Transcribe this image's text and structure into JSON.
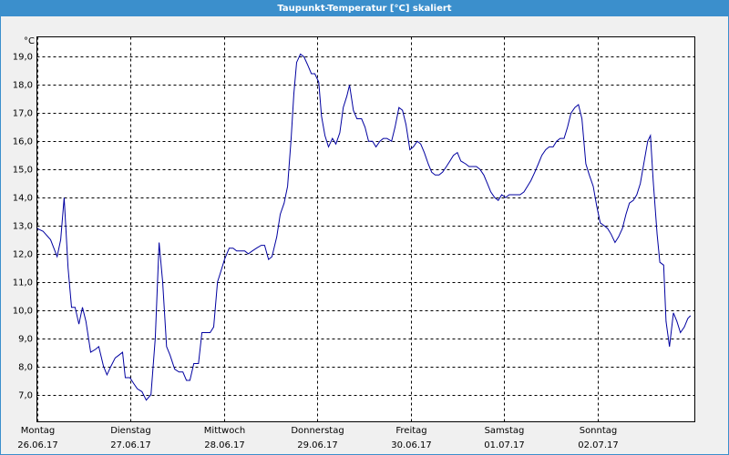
{
  "chart_data": {
    "type": "line",
    "title": "Taupunkt-Temperatur [°C] skaliert",
    "y_unit": "°C",
    "x": [
      0,
      1.6,
      3.5,
      5.2,
      6.1,
      7.0,
      8.0,
      8.9,
      9.8,
      10.8,
      11.7,
      12.6,
      13.8,
      15.0,
      15.9,
      17.1,
      18.0,
      19.0,
      20.1,
      21.1,
      22.0,
      22.7,
      23.9,
      24.8,
      25.8,
      27.0,
      28.1,
      29.3,
      30.4,
      31.4,
      32.3,
      33.3,
      34.2,
      35.4,
      36.5,
      37.5,
      38.4,
      39.3,
      40.3,
      41.5,
      42.4,
      43.3,
      44.5,
      45.4,
      46.4,
      47.3,
      48.2,
      49.4,
      50.4,
      51.3,
      52.5,
      53.4,
      54.3,
      55.3,
      56.4,
      57.6,
      58.5,
      59.5,
      60.4,
      61.6,
      62.5,
      63.5,
      64.4,
      65.3,
      66.0,
      66.7,
      67.7,
      68.6,
      69.6,
      70.5,
      71.4,
      72.4,
      73.1,
      74.0,
      74.9,
      75.9,
      76.8,
      77.8,
      78.7,
      79.6,
      80.3,
      81.3,
      82.2,
      83.4,
      84.3,
      85.2,
      86.2,
      87.1,
      88.1,
      89.0,
      89.9,
      91.1,
      92.0,
      93.0,
      93.9,
      94.8,
      95.8,
      96.7,
      97.7,
      98.6,
      99.5,
      100.5,
      101.4,
      102.3,
      103.3,
      104.2,
      105.2,
      106.1,
      107.0,
      108.0,
      108.9,
      110.1,
      111.0,
      111.9,
      112.9,
      113.8,
      114.8,
      115.7,
      116.6,
      117.6,
      118.5,
      119.4,
      120.4,
      121.3,
      122.2,
      123.2,
      124.1,
      125.1,
      126.0,
      126.9,
      127.9,
      128.8,
      129.7,
      130.7,
      131.6,
      132.6,
      133.5,
      134.4,
      135.4,
      136.3,
      137.2,
      138.2,
      139.1,
      140.0,
      141.0,
      141.9,
      142.9,
      143.8,
      144.7,
      145.7,
      146.6,
      147.5,
      148.5,
      149.4,
      150.4,
      151.3,
      152.2,
      153.2,
      154.1,
      155.0,
      156.0,
      156.9,
      157.6,
      158.3,
      159.3,
      160.0,
      161.0,
      161.6,
      162.5,
      163.5,
      164.4,
      165.3,
      166.3,
      167.2,
      167.9
    ],
    "series": [
      {
        "color": "#0000a0",
        "values": [
          12.9,
          12.8,
          12.5,
          11.9,
          12.5,
          14.0,
          11.5,
          10.1,
          10.1,
          9.5,
          10.1,
          9.6,
          8.5,
          8.6,
          8.7,
          8.0,
          7.7,
          8.0,
          8.3,
          8.4,
          8.5,
          7.6,
          7.6,
          7.4,
          7.2,
          7.1,
          6.8,
          7.0,
          9.0,
          12.4,
          11.0,
          8.7,
          8.4,
          7.9,
          7.8,
          7.8,
          7.5,
          7.5,
          8.1,
          8.1,
          9.2,
          9.2,
          9.2,
          9.4,
          11.0,
          11.4,
          11.8,
          12.2,
          12.2,
          12.1,
          12.1,
          12.1,
          12.0,
          12.1,
          12.2,
          12.3,
          12.3,
          11.8,
          11.9,
          12.6,
          13.4,
          13.8,
          14.4,
          16.1,
          17.7,
          18.8,
          19.1,
          19.0,
          18.7,
          18.4,
          18.4,
          18.1,
          16.9,
          16.2,
          15.8,
          16.1,
          15.9,
          16.3,
          17.2,
          17.6,
          18.0,
          17.1,
          16.8,
          16.8,
          16.5,
          16.0,
          16.0,
          15.8,
          16.0,
          16.1,
          16.1,
          16.0,
          16.5,
          17.2,
          17.1,
          16.6,
          15.7,
          15.8,
          16.0,
          15.9,
          15.6,
          15.2,
          14.9,
          14.8,
          14.8,
          14.9,
          15.1,
          15.3,
          15.5,
          15.6,
          15.3,
          15.2,
          15.1,
          15.1,
          15.1,
          15.0,
          14.8,
          14.5,
          14.2,
          14.0,
          13.9,
          14.1,
          14.0,
          14.1,
          14.1,
          14.1,
          14.1,
          14.2,
          14.4,
          14.6,
          14.9,
          15.2,
          15.5,
          15.7,
          15.8,
          15.8,
          16.0,
          16.1,
          16.1,
          16.5,
          17.0,
          17.2,
          17.3,
          16.8,
          15.2,
          14.8,
          14.4,
          13.7,
          13.1,
          13.0,
          12.9,
          12.7,
          12.4,
          12.6,
          12.9,
          13.4,
          13.8,
          13.9,
          14.1,
          14.5,
          15.3,
          16.0,
          16.2,
          14.6,
          12.7,
          11.7,
          11.6,
          9.6,
          8.7,
          9.9,
          9.6,
          9.2,
          9.4,
          9.7,
          9.8
        ]
      }
    ],
    "xlim": [
      0,
      169
    ],
    "xticks": [
      {
        "value": 0,
        "label": "Montag",
        "date": "26.06.17"
      },
      {
        "value": 24,
        "label": "Dienstag",
        "date": "27.06.17"
      },
      {
        "value": 48,
        "label": "Mittwoch",
        "date": "28.06.17"
      },
      {
        "value": 72,
        "label": "Donnerstag",
        "date": "29.06.17"
      },
      {
        "value": 96,
        "label": "Freitag",
        "date": "30.06.17"
      },
      {
        "value": 120,
        "label": "Samstag",
        "date": "01.07.17"
      },
      {
        "value": 144,
        "label": "Sonntag",
        "date": "02.07.17"
      }
    ],
    "ylim": [
      6.03,
      19.71
    ],
    "yticks": [
      {
        "value": 7,
        "label": "7,0"
      },
      {
        "value": 8,
        "label": "8,0"
      },
      {
        "value": 9,
        "label": "9,0"
      },
      {
        "value": 10,
        "label": "10,0"
      },
      {
        "value": 11,
        "label": "11,0"
      },
      {
        "value": 12,
        "label": "12,0"
      },
      {
        "value": 13,
        "label": "13,0"
      },
      {
        "value": 14,
        "label": "14,0"
      },
      {
        "value": 15,
        "label": "15,0"
      },
      {
        "value": 16,
        "label": "16,0"
      },
      {
        "value": 17,
        "label": "17,0"
      },
      {
        "value": 18,
        "label": "18,0"
      },
      {
        "value": 19,
        "label": "19,0"
      }
    ],
    "grid": true
  }
}
